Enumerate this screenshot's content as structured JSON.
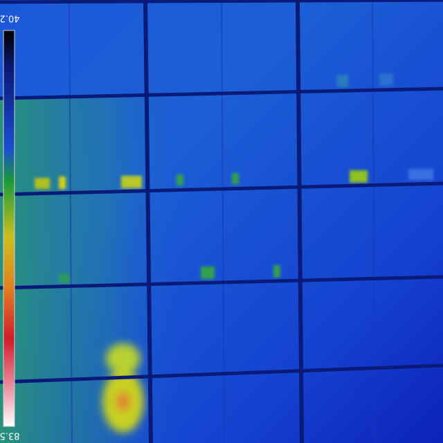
{
  "colorbar": {
    "top_label": "40.2",
    "bottom_label": "83.5"
  }
}
